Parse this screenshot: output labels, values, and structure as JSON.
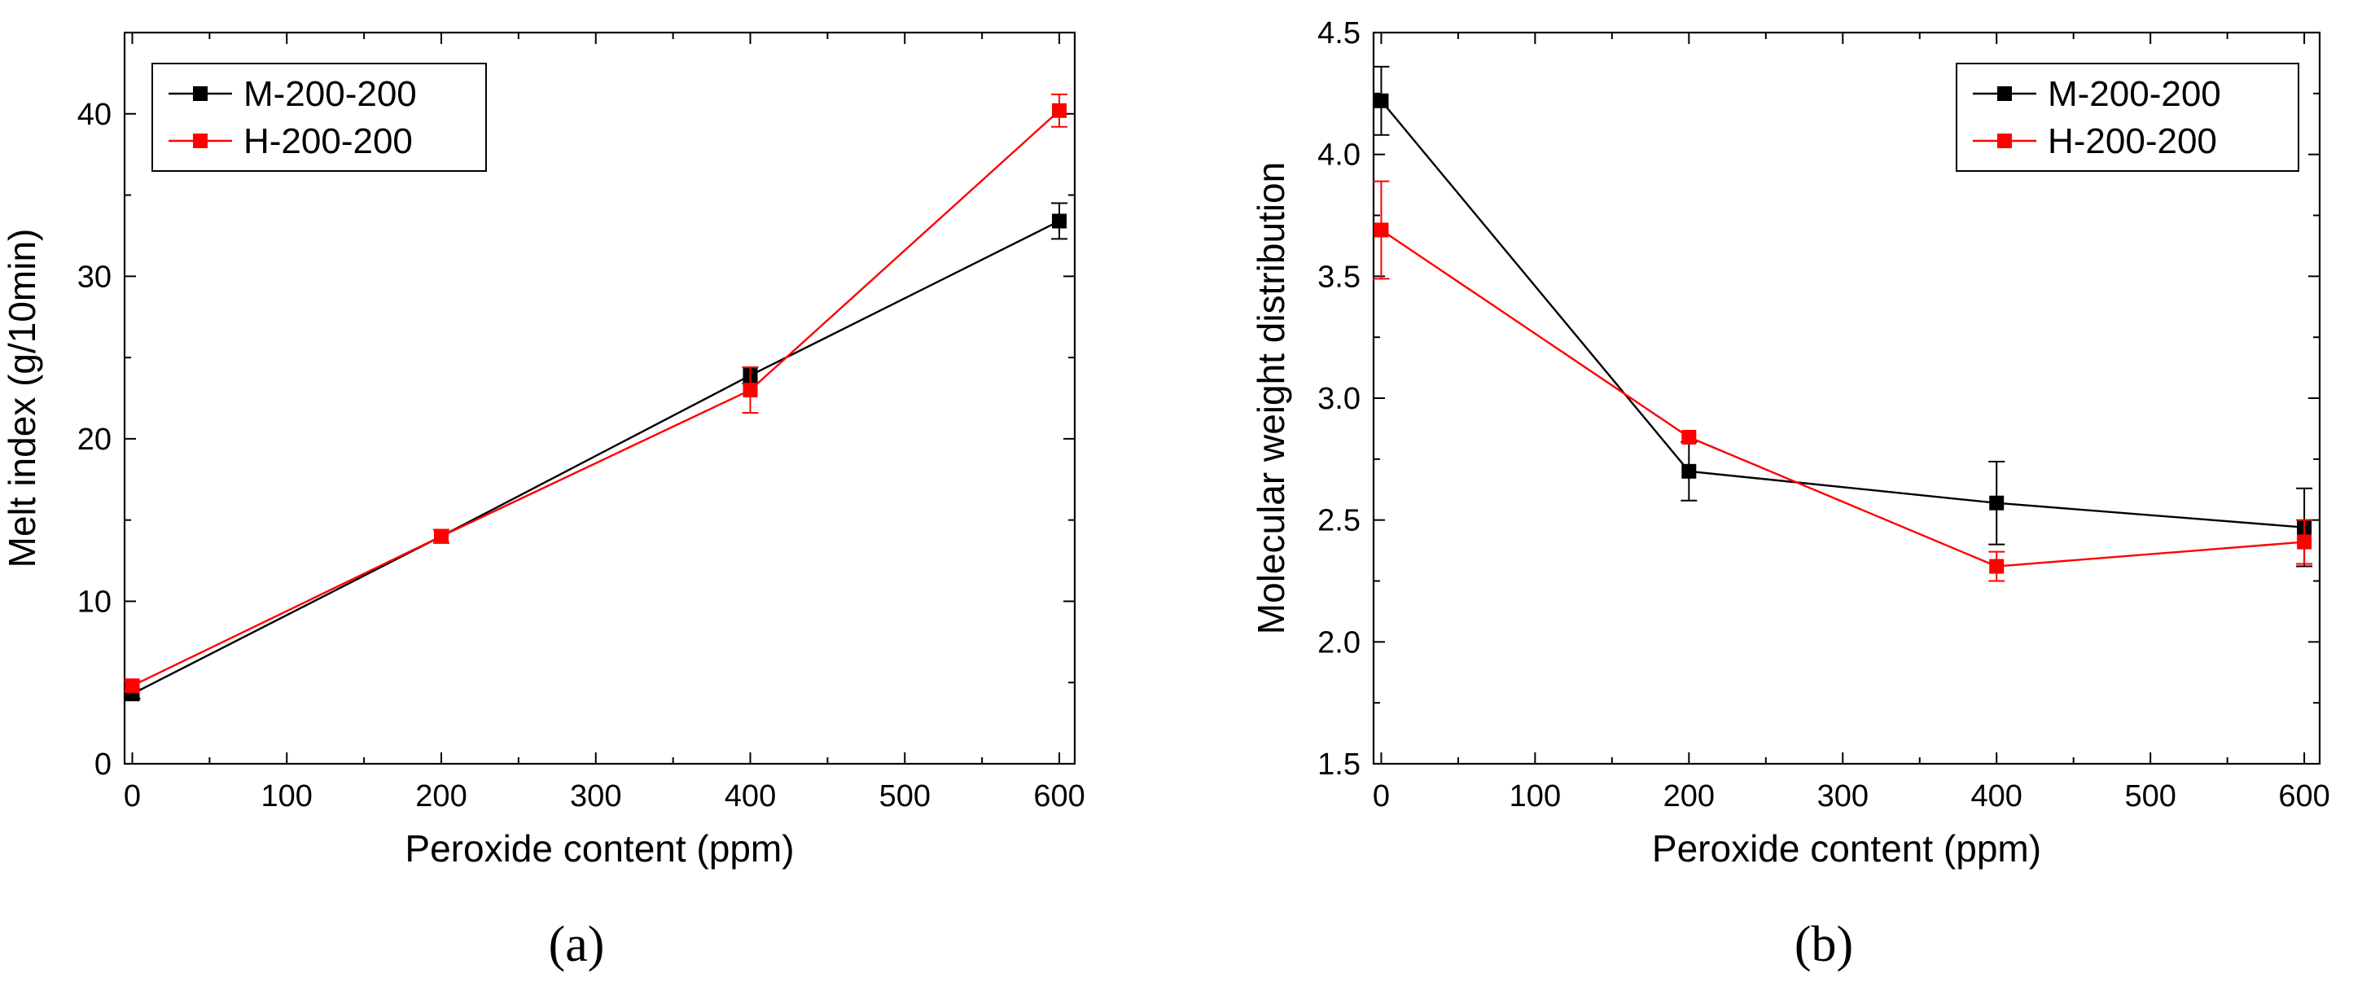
{
  "colors": {
    "m_series": "#000000",
    "h_series": "#ff0000",
    "axis": "#000000",
    "background": "#ffffff"
  },
  "chart_data": [
    {
      "type": "line",
      "panel_label": "(a)",
      "title": "",
      "xlabel": "Peroxide content (ppm)",
      "ylabel": "Melt index (g/10min)",
      "xlim": [
        -5,
        610
      ],
      "ylim": [
        0,
        45
      ],
      "xticks": [
        0,
        100,
        200,
        300,
        400,
        500,
        600
      ],
      "yticks": [
        0,
        10,
        20,
        30,
        40
      ],
      "grid": false,
      "legend_position": "top-left",
      "x": [
        0,
        200,
        400,
        600
      ],
      "series": [
        {
          "name": "M-200-200",
          "color": "#000000",
          "marker": "square",
          "values": [
            4.3,
            14.0,
            23.9,
            33.4
          ],
          "errors": [
            0.3,
            0.4,
            0.5,
            1.1
          ]
        },
        {
          "name": "H-200-200",
          "color": "#ff0000",
          "marker": "square",
          "values": [
            4.8,
            14.0,
            23.0,
            40.2
          ],
          "errors": [
            0.3,
            0.4,
            1.4,
            1.0
          ]
        }
      ]
    },
    {
      "type": "line",
      "panel_label": "(b)",
      "title": "",
      "xlabel": "Peroxide content (ppm)",
      "ylabel": "Molecular weight distribution",
      "xlim": [
        -5,
        610
      ],
      "ylim": [
        1.5,
        4.5
      ],
      "xticks": [
        0,
        100,
        200,
        300,
        400,
        500,
        600
      ],
      "yticks": [
        1.5,
        2.0,
        2.5,
        3.0,
        3.5,
        4.0,
        4.5
      ],
      "grid": false,
      "legend_position": "top-right",
      "x": [
        0,
        200,
        400,
        600
      ],
      "series": [
        {
          "name": "M-200-200",
          "color": "#000000",
          "marker": "square",
          "values": [
            4.22,
            2.7,
            2.57,
            2.47
          ],
          "errors": [
            0.14,
            0.12,
            0.17,
            0.16
          ]
        },
        {
          "name": "H-200-200",
          "color": "#ff0000",
          "marker": "square",
          "values": [
            3.69,
            2.84,
            2.31,
            2.41
          ],
          "errors": [
            0.2,
            0.0,
            0.06,
            0.09
          ]
        }
      ]
    }
  ]
}
